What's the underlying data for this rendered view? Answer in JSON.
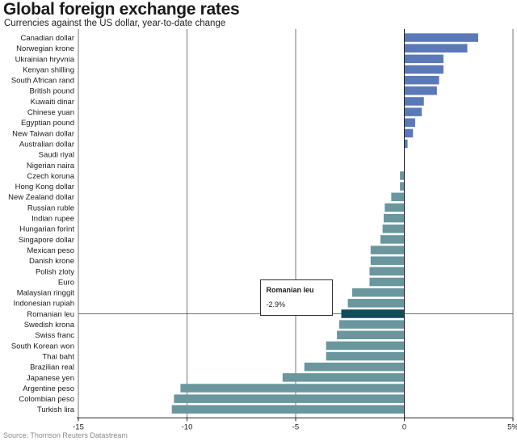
{
  "chart_data": {
    "type": "bar",
    "orientation": "horizontal",
    "title": "Global foreign exchange rates",
    "subtitle": "Currencies against the US dollar, year-to-date change",
    "source": "Source: Thomson Reuters Datastream",
    "xlim": [
      -15,
      5
    ],
    "xticks": [
      -15,
      -10,
      -5,
      0,
      5
    ],
    "xtick_labels": [
      "-15",
      "-10",
      "-5",
      "0",
      "5%"
    ],
    "grid": "vertical",
    "categories": [
      "Canadian dollar",
      "Norwegian krone",
      "Ukrainian hryvnia",
      "Kenyan shilling",
      "South African rand",
      "British pound",
      "Kuwaiti dinar",
      "Chinese yuan",
      "Egyptian pound",
      "New Taiwan dollar",
      "Australian dollar",
      "Saudi riyal",
      "Nigerian naira",
      "Czech koruna",
      "Hong Kong dollar",
      "New Zealand dollar",
      "Russian ruble",
      "Indian rupee",
      "Hungarian forint",
      "Singapore dollar",
      "Mexican peso",
      "Danish krone",
      "Polish zloty",
      "Euro",
      "Malaysian ringgit",
      "Indonesian rupiah",
      "Romanian leu",
      "Swedish krona",
      "Swiss franc",
      "South Korean won",
      "Thai baht",
      "Brazilian real",
      "Japanese yen",
      "Argentine peso",
      "Colombian peso",
      "Turkish lira"
    ],
    "values": [
      3.4,
      2.9,
      1.8,
      1.8,
      1.6,
      1.5,
      0.9,
      0.8,
      0.5,
      0.4,
      0.15,
      0.0,
      0.0,
      -0.2,
      -0.2,
      -0.6,
      -0.9,
      -0.95,
      -1.0,
      -1.1,
      -1.55,
      -1.55,
      -1.6,
      -1.6,
      -2.4,
      -2.6,
      -2.9,
      -3.0,
      -3.1,
      -3.6,
      -3.6,
      -4.6,
      -5.6,
      -10.3,
      -10.6,
      -10.7
    ],
    "positive_color": "#5b78b8",
    "negative_color": "#6a969e",
    "highlight_color": "#0f4c5c",
    "highlight": {
      "category": "Romanian leu",
      "value_label": "-2.9%"
    }
  }
}
